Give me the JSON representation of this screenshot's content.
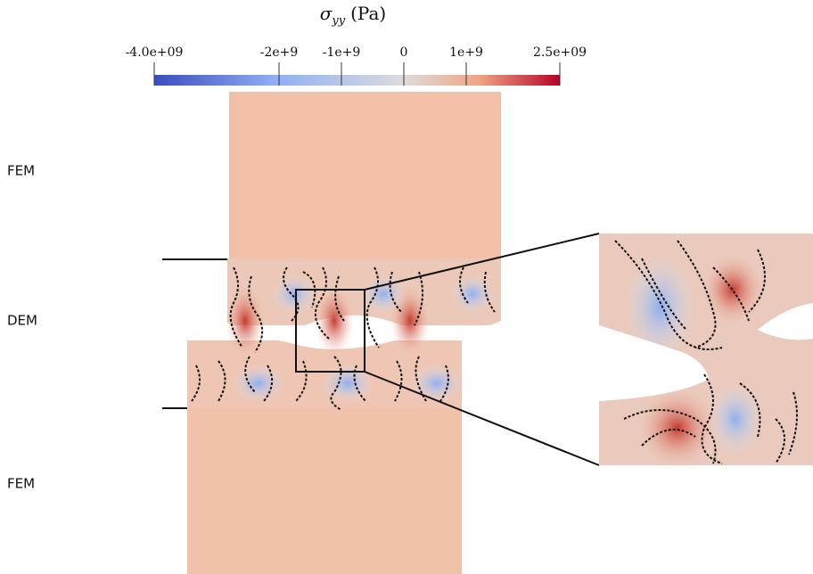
{
  "colorbar": {
    "title": {
      "symbol": "σ",
      "subscript": "yy",
      "unit": "(Pa)"
    },
    "range": [
      -4000000000,
      2500000000
    ],
    "ticks": [
      {
        "value": -4000000000,
        "label": "-4.0e+09"
      },
      {
        "value": -2000000000,
        "label": "-2e+9"
      },
      {
        "value": -1000000000,
        "label": "-1e+9"
      },
      0,
      {
        "value": 1000000000,
        "label": "1e+9"
      },
      {
        "value": 2500000000,
        "label": "2.5e+09"
      }
    ]
  },
  "regions": [
    "FEM",
    "DEM",
    "FEM"
  ]
}
